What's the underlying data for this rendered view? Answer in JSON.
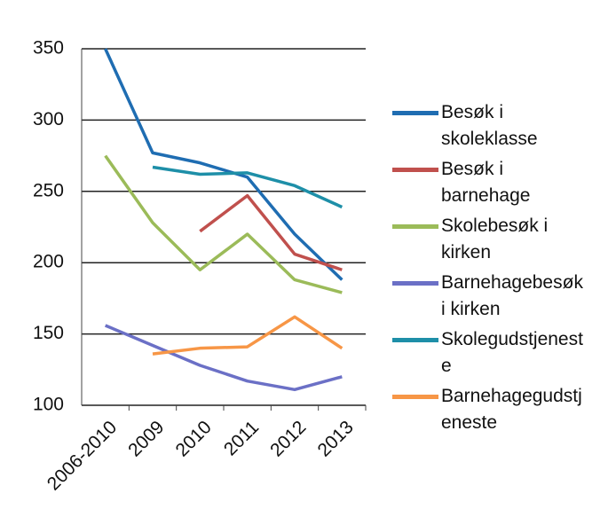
{
  "chart_data": {
    "type": "line",
    "categories": [
      "2006-2010",
      "2009",
      "2010",
      "2011",
      "2012",
      "2013"
    ],
    "series": [
      {
        "name": "Besøk i skoleklasse",
        "color": "#1f6db2",
        "values": [
          350,
          277,
          270,
          260,
          220,
          188
        ]
      },
      {
        "name": "Besøk i barnehage",
        "color": "#c0504d",
        "values": [
          null,
          null,
          222,
          247,
          206,
          195
        ]
      },
      {
        "name": "Skolebesøk i kirken",
        "color": "#9bbb59",
        "values": [
          275,
          228,
          195,
          220,
          188,
          179
        ]
      },
      {
        "name": "Barnehagebesøk i kirken",
        "color": "#6b70c6",
        "values": [
          156,
          142,
          128,
          117,
          111,
          120
        ]
      },
      {
        "name": "Skolegudstjeneste",
        "color": "#1e8fa8",
        "values": [
          null,
          267,
          262,
          263,
          254,
          239
        ]
      },
      {
        "name": "Barnehagegudstjeneste",
        "color": "#f79646",
        "values": [
          null,
          136,
          140,
          141,
          162,
          140
        ]
      }
    ],
    "ylim": [
      100,
      350
    ],
    "yticks": [
      100,
      150,
      200,
      250,
      300,
      350
    ],
    "grid": true
  }
}
